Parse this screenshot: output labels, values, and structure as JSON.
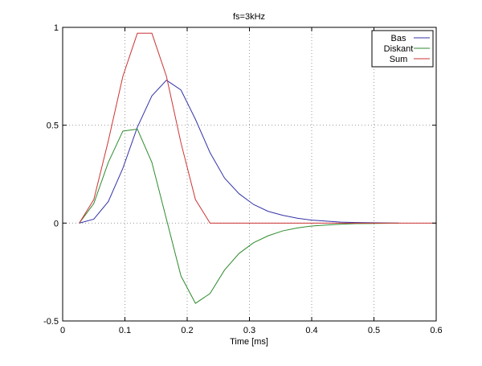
{
  "chart_data": {
    "type": "line",
    "title": "fs=3kHz",
    "xlabel": "Time [ms]",
    "ylabel": "",
    "xlim": [
      0,
      0.6
    ],
    "ylim": [
      -0.5,
      1
    ],
    "xticks": [
      0,
      0.1,
      0.2,
      0.3,
      0.4,
      0.5,
      0.6
    ],
    "xtick_labels": [
      "0",
      "0.1",
      "0.2",
      "0.3",
      "0.4",
      "0.5",
      "0.6"
    ],
    "yticks": [
      -0.5,
      0,
      0.5,
      1
    ],
    "ytick_labels": [
      "-0.5",
      "0",
      "0.5",
      "1"
    ],
    "grid": true,
    "legend_position": "top-right",
    "series": [
      {
        "name": "Bas",
        "color": "#3333aa",
        "x": [
          0.0267,
          0.05,
          0.0733,
          0.0967,
          0.12,
          0.1433,
          0.1667,
          0.19,
          0.2133,
          0.2367,
          0.26,
          0.2833,
          0.3067,
          0.33,
          0.3533,
          0.3767,
          0.4,
          0.4233,
          0.4467,
          0.47,
          0.4933,
          0.5167,
          0.54
        ],
        "y": [
          0,
          0.02,
          0.11,
          0.28,
          0.49,
          0.65,
          0.73,
          0.68,
          0.53,
          0.36,
          0.23,
          0.15,
          0.095,
          0.06,
          0.04,
          0.025,
          0.015,
          0.01,
          0.005,
          0.003,
          0.002,
          0.001,
          0
        ]
      },
      {
        "name": "Diskant",
        "color": "#2e8b2e",
        "x": [
          0.0267,
          0.05,
          0.0733,
          0.0967,
          0.12,
          0.1433,
          0.1667,
          0.19,
          0.2133,
          0.2367,
          0.26,
          0.2833,
          0.3067,
          0.33,
          0.3533,
          0.3767,
          0.4,
          0.4233,
          0.4467,
          0.47,
          0.4933,
          0.5167,
          0.54
        ],
        "y": [
          0,
          0.1,
          0.31,
          0.47,
          0.48,
          0.31,
          0.02,
          -0.27,
          -0.41,
          -0.36,
          -0.24,
          -0.155,
          -0.1,
          -0.065,
          -0.04,
          -0.025,
          -0.015,
          -0.01,
          -0.006,
          -0.003,
          -0.002,
          -0.001,
          0
        ]
      },
      {
        "name": "Sum",
        "color": "#cc3333",
        "x": [
          0.0267,
          0.05,
          0.0733,
          0.0967,
          0.12,
          0.1433,
          0.1667,
          0.19,
          0.2133,
          0.2367,
          0.26,
          0.2833,
          0.3067,
          0.33,
          0.3533,
          0.3767,
          0.4,
          0.4233,
          0.4467,
          0.47,
          0.4933,
          0.5167,
          0.54,
          0.6
        ],
        "y": [
          0,
          0.12,
          0.42,
          0.75,
          0.97,
          0.97,
          0.75,
          0.41,
          0.12,
          0,
          0,
          0,
          0,
          0,
          0,
          0,
          0,
          0,
          0,
          0,
          0,
          0,
          0,
          0
        ]
      }
    ]
  }
}
